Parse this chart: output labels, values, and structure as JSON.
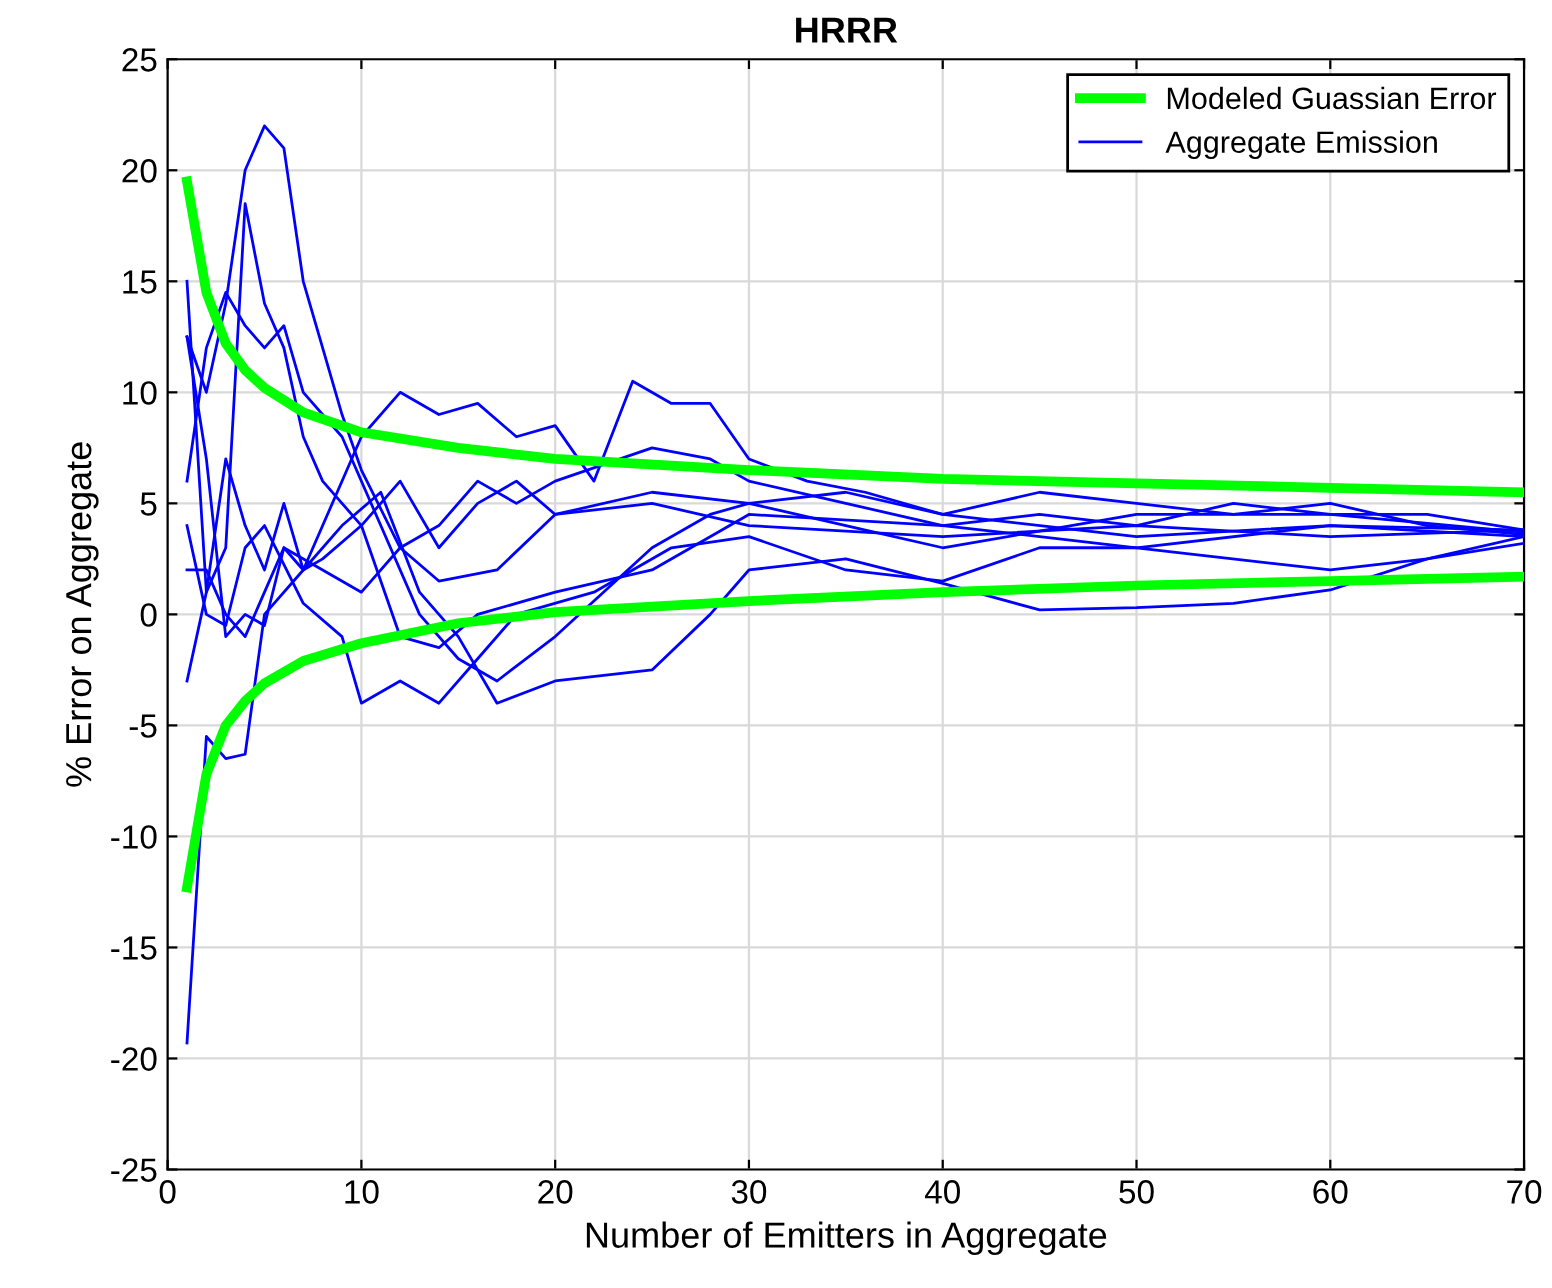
{
  "chart_data": {
    "type": "line",
    "title": "HRRR",
    "xlabel": "Number of Emitters in Aggregate",
    "ylabel": "% Error on Aggregate",
    "xlim": [
      0,
      70
    ],
    "ylim": [
      -25,
      25
    ],
    "xticks": [
      0,
      10,
      20,
      30,
      40,
      50,
      60,
      70
    ],
    "yticks": [
      -25,
      -20,
      -15,
      -10,
      -5,
      0,
      5,
      10,
      15,
      20,
      25
    ],
    "grid": true,
    "legend": "top right",
    "marker": "none",
    "line_style": "solid",
    "series": [
      {
        "name": "Modeled Guassian Error",
        "color": "#00ff00",
        "x": [
          1,
          2,
          3,
          4,
          5,
          7,
          10,
          15,
          20,
          30,
          40,
          50,
          60,
          70
        ],
        "values": [
          19.5,
          14.5,
          12.2,
          11,
          10.2,
          9.1,
          8.2,
          7.5,
          7.0,
          6.5,
          6.1,
          5.9,
          5.7,
          5.5
        ]
      },
      {
        "color": "#00ff00",
        "x": [
          1,
          2,
          3,
          4,
          5,
          7,
          10,
          15,
          20,
          30,
          40,
          50,
          60,
          70
        ],
        "values": [
          -12.3,
          -7.2,
          -5,
          -3.9,
          -3.1,
          -2.1,
          -1.3,
          -0.4,
          0.1,
          0.6,
          1.0,
          1.3,
          1.5,
          1.7
        ]
      },
      {
        "name": "Aggregate Emission",
        "color": "#0000ff",
        "x": [
          1,
          2,
          3,
          4,
          5,
          6,
          7,
          8,
          9,
          10,
          12,
          14,
          17,
          20,
          25,
          30,
          40,
          50,
          60,
          70
        ],
        "values": [
          12.5,
          10,
          14,
          20,
          22,
          21,
          15,
          12,
          9,
          6.5,
          3,
          1.5,
          2,
          4.5,
          5,
          4,
          3.5,
          4,
          3.5,
          3.8
        ]
      },
      {
        "color": "#0000ff",
        "x": [
          1,
          2,
          3,
          4,
          5,
          7,
          9,
          11,
          13,
          15,
          17,
          20,
          25,
          28,
          30,
          35,
          40,
          45,
          50,
          55,
          60,
          65,
          70
        ],
        "values": [
          -19.3,
          -5.5,
          -6.5,
          -6.3,
          0,
          2,
          4,
          5.5,
          1,
          -1,
          -4,
          -3,
          -2.5,
          0,
          2,
          2.5,
          1.4,
          0.2,
          0.3,
          0.5,
          1.1,
          2.5,
          3.5
        ]
      },
      {
        "color": "#0000ff",
        "x": [
          1,
          2,
          3,
          4,
          5,
          6,
          7,
          8,
          10,
          12,
          14,
          16,
          20,
          25,
          30,
          40,
          50,
          60,
          70
        ],
        "values": [
          15,
          1,
          3,
          18.5,
          14,
          12,
          8,
          6,
          4,
          -1,
          -1.5,
          0,
          1,
          2,
          4.5,
          4,
          3,
          4,
          3.8
        ]
      },
      {
        "color": "#0000ff",
        "x": [
          1,
          2,
          3,
          4,
          5,
          6,
          7,
          9,
          11,
          13,
          15,
          17,
          20,
          25,
          28,
          30,
          35,
          40,
          50,
          60,
          70
        ],
        "values": [
          6,
          12,
          14.5,
          13,
          12,
          13,
          10,
          8,
          4,
          0,
          -2,
          -3,
          -1,
          3,
          4.5,
          5,
          4,
          3,
          4.5,
          4.5,
          3.7
        ]
      },
      {
        "color": "#0000ff",
        "x": [
          1,
          2,
          3,
          4,
          5,
          6,
          7,
          10,
          12,
          14,
          16,
          18,
          20,
          22,
          24,
          26,
          28,
          30,
          33,
          36,
          40,
          50,
          60,
          70
        ],
        "values": [
          -3,
          1,
          7,
          4,
          2,
          5,
          2,
          8,
          10,
          9,
          9.5,
          8,
          8.5,
          6,
          10.5,
          9.5,
          9.5,
          7,
          6,
          5.5,
          4.5,
          3.5,
          4,
          3.5
        ]
      },
      {
        "color": "#0000ff",
        "x": [
          1,
          2,
          3,
          4,
          5,
          7,
          9,
          10,
          12,
          14,
          16,
          18,
          22,
          26,
          30,
          35,
          40,
          45,
          50,
          60,
          65,
          70
        ],
        "values": [
          4,
          0,
          -0.5,
          3,
          4,
          0.5,
          -1,
          -4,
          -3,
          -4,
          -2,
          0,
          1,
          3,
          3.5,
          2,
          1.5,
          3,
          3,
          2,
          2.5,
          3.2
        ]
      },
      {
        "color": "#0000ff",
        "x": [
          1,
          2,
          3,
          4,
          5,
          6,
          7,
          8,
          10,
          12,
          14,
          16,
          18,
          20,
          25,
          30,
          35,
          40,
          45,
          50,
          55,
          60,
          65,
          70
        ],
        "values": [
          12.5,
          7,
          -1,
          0,
          -0.5,
          3,
          2,
          2.5,
          4,
          6,
          3,
          5,
          6,
          4.5,
          5.5,
          5,
          5.5,
          4.5,
          5.5,
          5,
          4.5,
          5,
          4,
          3.6
        ]
      },
      {
        "color": "#0000ff",
        "x": [
          1,
          2,
          3,
          4,
          5,
          6,
          8,
          10,
          12,
          14,
          16,
          18,
          20,
          25,
          28,
          30,
          35,
          40,
          45,
          50,
          55,
          60,
          65,
          70
        ],
        "values": [
          2,
          2,
          0,
          -1,
          1,
          3,
          2,
          1,
          3,
          4,
          6,
          5,
          6,
          7.5,
          7,
          6,
          5,
          4,
          4.5,
          4,
          5,
          4.5,
          4.5,
          3.8
        ]
      }
    ]
  }
}
